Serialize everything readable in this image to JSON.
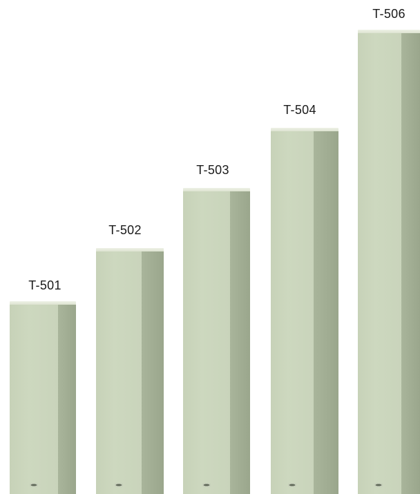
{
  "columns": [
    {
      "label": "T-501"
    },
    {
      "label": "T-502"
    },
    {
      "label": "T-503"
    },
    {
      "label": "T-504"
    },
    {
      "label": "T-506"
    }
  ],
  "colors": {
    "background": "#ffffff",
    "column_face": "#cdd8bf",
    "column_side": "#9aa68c",
    "label_text": "#1a1a1a"
  },
  "icons": [
    "brand-logo-icon"
  ]
}
